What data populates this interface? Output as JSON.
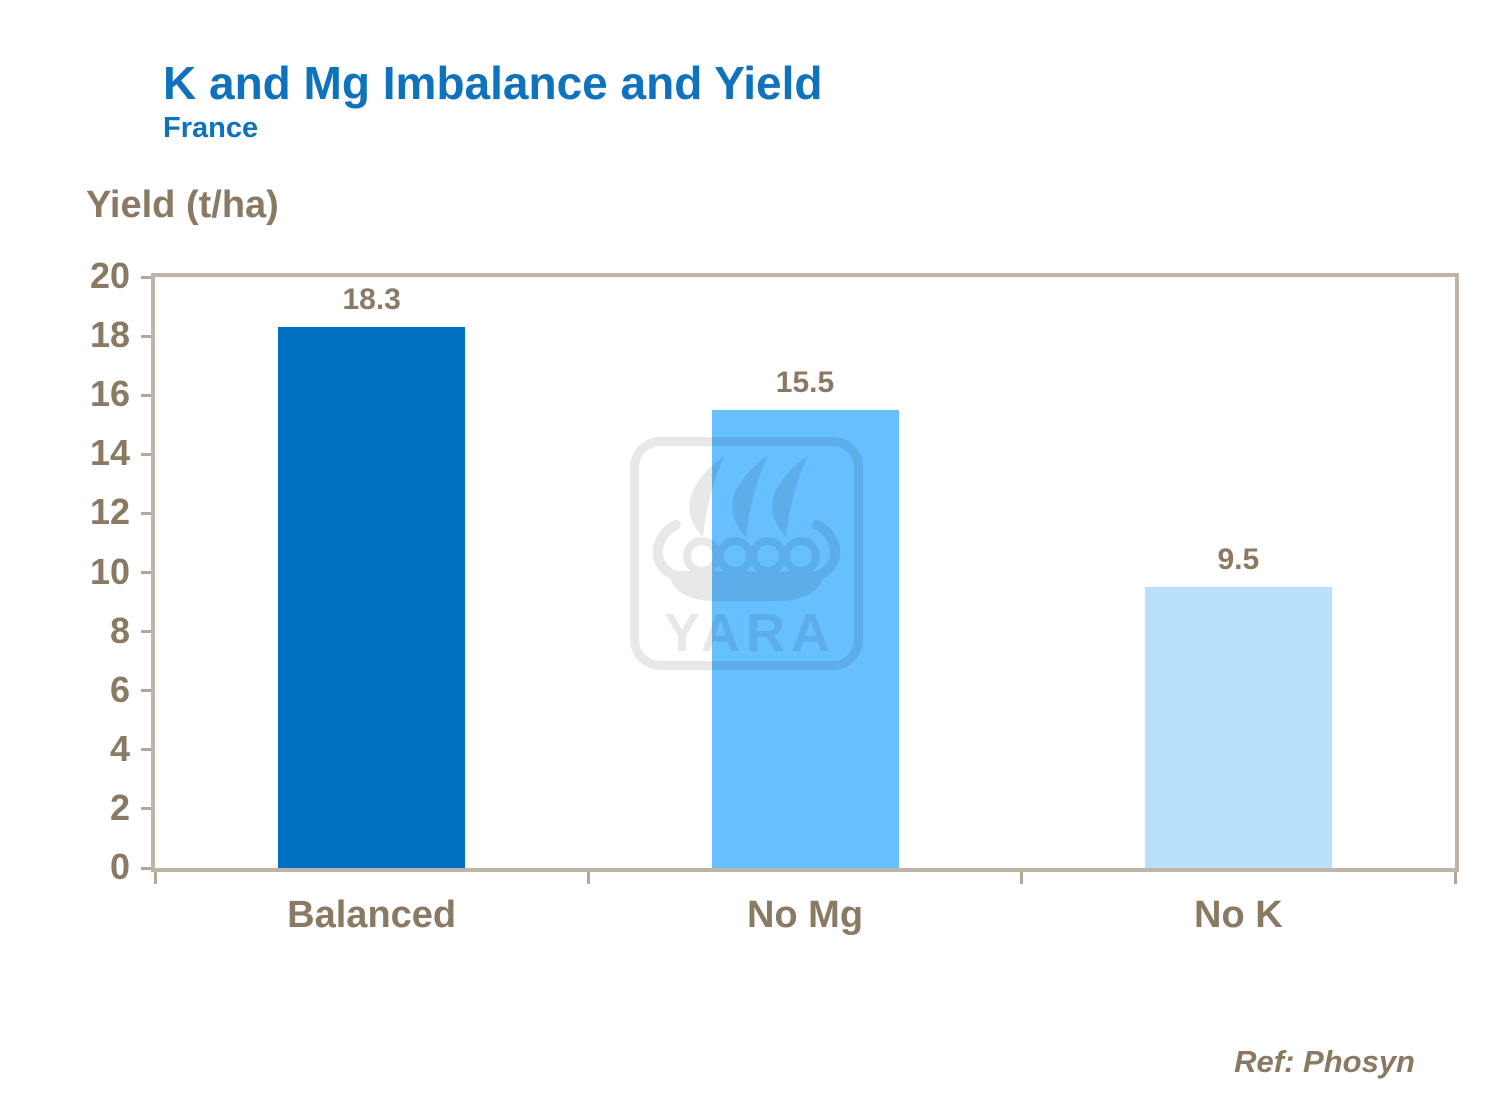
{
  "slide": {
    "title": "K and Mg Imbalance and Yield",
    "subtitle": "France",
    "footer_ref": "Ref: Phosyn"
  },
  "watermark": {
    "name": "yara-logo",
    "text": "YARA"
  },
  "colors": {
    "title_blue": "#0e72bd",
    "text_brown": "#8a7a63",
    "frame_tan": "#bfb4a8",
    "tick_tan": "#b3a798",
    "background": "#ffffff"
  },
  "chart_data": {
    "type": "bar",
    "title": "K and Mg Imbalance and Yield",
    "subtitle": "France",
    "ylabel": "Yield (t/ha)",
    "xlabel": "",
    "categories": [
      "Balanced",
      "No Mg",
      "No K"
    ],
    "values": [
      18.3,
      15.5,
      9.5
    ],
    "data_labels": [
      "18.3",
      "15.5",
      "9.5"
    ],
    "bar_colors": [
      "#0070c0",
      "#66bfff",
      "#b8dffc"
    ],
    "ylim": [
      0,
      20
    ],
    "yticks": [
      0,
      2,
      4,
      6,
      8,
      10,
      12,
      14,
      16,
      18,
      20
    ],
    "grid": false,
    "legend_position": "none",
    "annotation": "Ref: Phosyn"
  }
}
